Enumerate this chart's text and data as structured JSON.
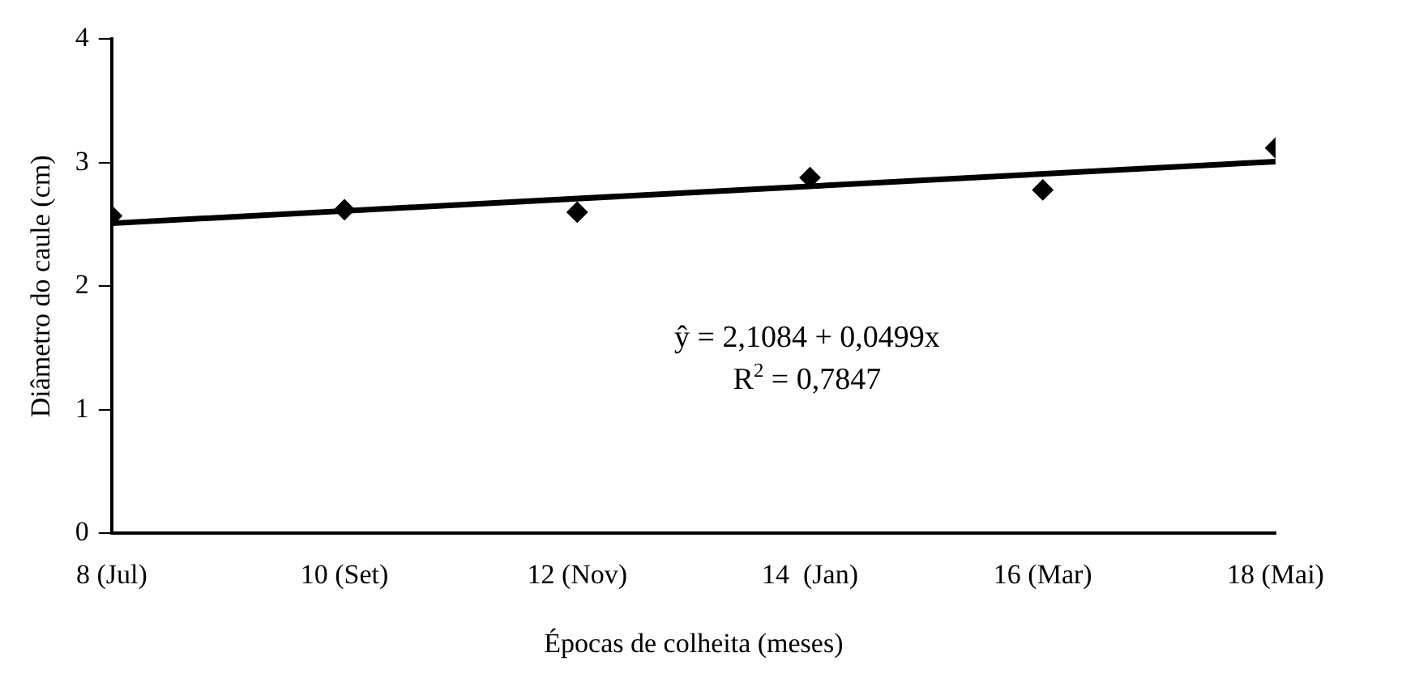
{
  "chart_data": {
    "type": "scatter",
    "xlabel": "Épocas de colheita (meses)",
    "ylabel": "Diâmetro do caule (cm)",
    "x": [
      8,
      10,
      12,
      14,
      16,
      18
    ],
    "series": [
      {
        "color": "#000000",
        "marker": "diamond",
        "values": [
          2.57,
          2.62,
          2.6,
          2.88,
          2.78,
          3.12
        ]
      },
      {
        "type": "line",
        "color": "#000000",
        "marker": "none",
        "x": [
          8,
          18
        ],
        "values": [
          2.51,
          3.01
        ]
      }
    ],
    "xlim": [
      8,
      18
    ],
    "xticks": [
      {
        "value": 8,
        "label": "8 (Jul)"
      },
      {
        "value": 10,
        "label": "10 (Set)"
      },
      {
        "value": 12,
        "label": "12 (Nov)"
      },
      {
        "value": 14,
        "label": "14  (Jan)"
      },
      {
        "value": 16,
        "label": "16 (Mar)"
      },
      {
        "value": 18,
        "label": "18 (Mai)"
      }
    ],
    "ylim": [
      0,
      4
    ],
    "yticks": [
      0,
      1,
      2,
      3,
      4
    ],
    "grid": false,
    "legend": false,
    "annotations": [
      "ŷ = 2,1084 + 0,0499x",
      "R$^{2}$ = 0,7847"
    ]
  }
}
